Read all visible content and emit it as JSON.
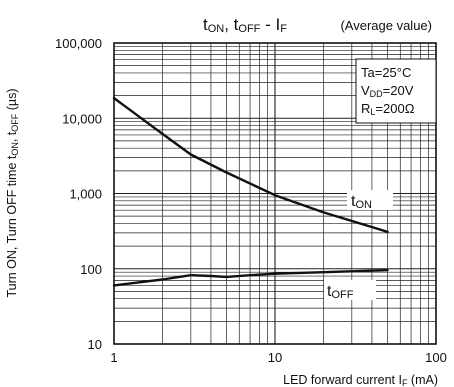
{
  "chart_data": {
    "type": "line",
    "title": "tON, tOFF - IF",
    "title_parts": {
      "t1": "t",
      "s1": "ON",
      "sep": ", t",
      "s2": "OFF",
      "dash": " - I",
      "s3": "F"
    },
    "subtitle": "(Average value)",
    "xlabel": "LED forward current IF (mA)",
    "xlabel_parts": {
      "main": "LED forward current I",
      "sub": "F",
      "unit": " (mA)"
    },
    "ylabel": "Turn ON, Turn OFF time tON, tOFF (µs)",
    "ylabel_parts": {
      "main": "Turn ON, Turn OFF time t",
      "s1": "ON",
      "sep": ", t",
      "s2": "OFF",
      "unit": " (µs)"
    },
    "x_scale": "log",
    "y_scale": "log",
    "xlim": [
      1,
      100
    ],
    "ylim": [
      10,
      100000
    ],
    "x_ticks": [
      "1",
      "10",
      "100"
    ],
    "y_ticks": [
      "10",
      "100",
      "1,000",
      "10,000",
      "100,000"
    ],
    "grid": true,
    "conditions": [
      {
        "main": "Ta=25°C",
        "sub": ""
      },
      {
        "main": "V",
        "sub": "DD",
        "rest": "=20V"
      },
      {
        "main": "R",
        "sub": "L",
        "rest": "=200Ω"
      }
    ],
    "series": [
      {
        "name": "tON",
        "label_parts": {
          "main": "t",
          "sub": "ON"
        },
        "x": [
          1,
          2,
          3,
          5,
          10,
          20,
          50
        ],
        "y": [
          18500,
          6200,
          3300,
          1900,
          950,
          560,
          310
        ]
      },
      {
        "name": "tOFF",
        "label_parts": {
          "main": "t",
          "sub": "OFF"
        },
        "x": [
          1,
          2,
          3,
          4,
          5,
          7,
          10,
          20,
          50
        ],
        "y": [
          60,
          72,
          82,
          80,
          78,
          82,
          86,
          90,
          96
        ]
      }
    ]
  }
}
